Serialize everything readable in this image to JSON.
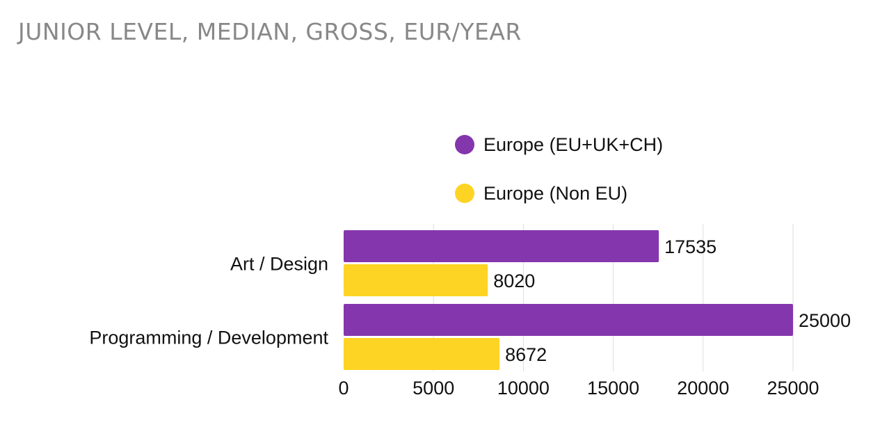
{
  "chart_data": {
    "type": "bar",
    "orientation": "horizontal",
    "title": "JUNIOR LEVEL, MEDIAN, GROSS, EUR/YEAR",
    "categories": [
      "Art / Design",
      "Programming / Development"
    ],
    "series": [
      {
        "name": "Europe (EU+UK+CH)",
        "color": "#8436AD",
        "values": [
          17535,
          25000
        ]
      },
      {
        "name": "Europe (Non EU)",
        "color": "#FDD424",
        "values": [
          8020,
          8672
        ]
      }
    ],
    "xticks": [
      0,
      5000,
      10000,
      15000,
      20000,
      25000
    ],
    "xlim": [
      0,
      25000
    ],
    "xlabel": "",
    "ylabel": "",
    "grid": true,
    "legend_position": "top-center"
  }
}
